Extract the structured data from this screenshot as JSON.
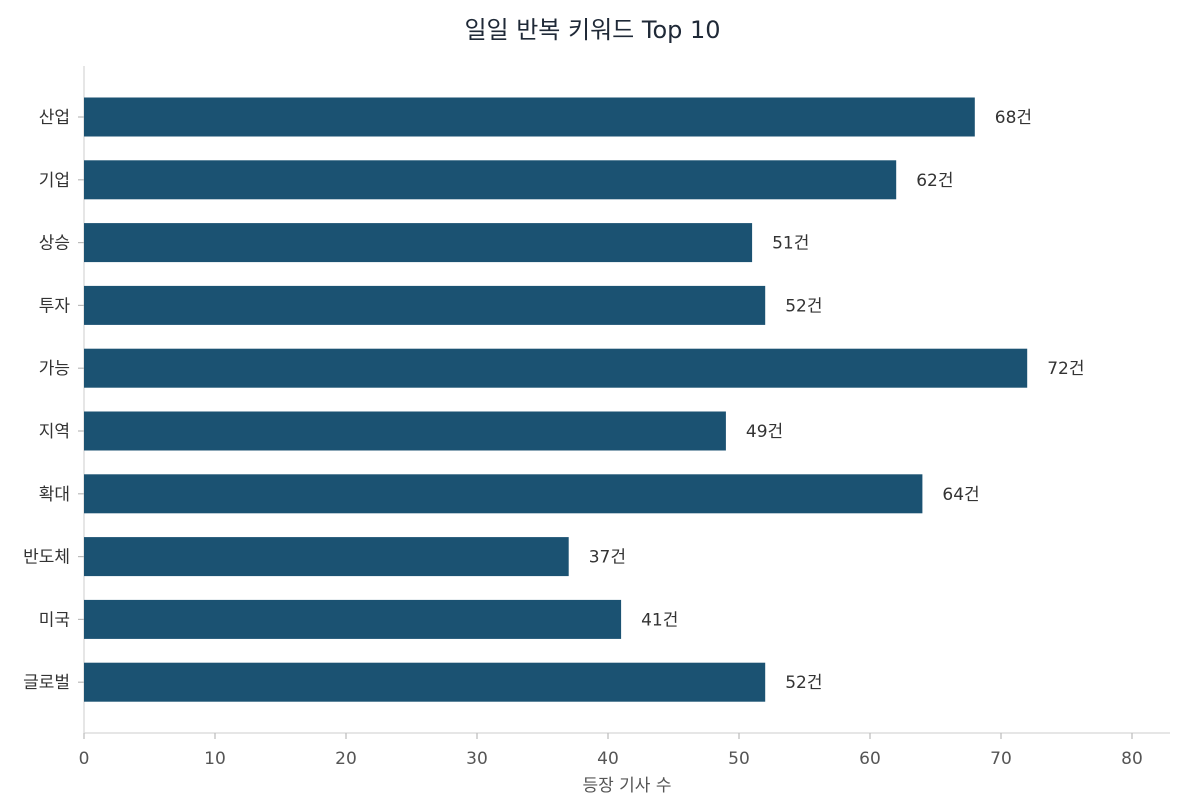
{
  "chart_data": {
    "type": "bar",
    "orientation": "horizontal",
    "title": "일일 반복 키워드 Top 10",
    "xlabel": "등장 기사 수",
    "ylabel": "",
    "categories": [
      "산업",
      "기업",
      "상승",
      "투자",
      "가능",
      "지역",
      "확대",
      "반도체",
      "미국",
      "글로벌"
    ],
    "values": [
      68,
      62,
      51,
      52,
      72,
      49,
      64,
      37,
      41,
      52
    ],
    "value_suffix": "건",
    "xlim": [
      0,
      83
    ],
    "xticks": [
      0,
      10,
      20,
      30,
      40,
      50,
      60,
      70,
      80
    ],
    "grid": false,
    "bar_color": "#1b5272",
    "axis_color": "#dddddd"
  }
}
